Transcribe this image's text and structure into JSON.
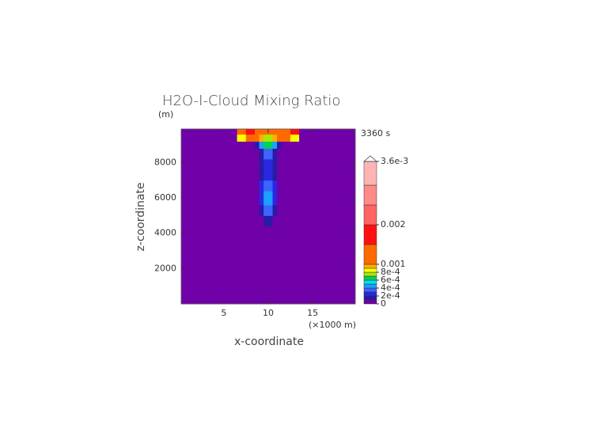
{
  "chart_data": {
    "type": "contour",
    "title": "H2O-I-Cloud Mixing Ratio",
    "y_unit": "(m)",
    "x_unit": "(×1000 m)",
    "time_label": "3360 s",
    "x_label": "x-coordinate",
    "y_label": "z-coordinate",
    "xlim": [
      0.2,
      19.8
    ],
    "ylim": [
      0,
      9900
    ],
    "xticks": [
      5,
      10,
      15
    ],
    "yticks": [
      2000,
      4000,
      6000,
      8000
    ],
    "x_edges": [
      0.2,
      6.5,
      7.5,
      8.5,
      9,
      9.5,
      10,
      10.5,
      11,
      11.5,
      12.5,
      13.5,
      19.8
    ],
    "y_edges": [
      0,
      4400,
      5000,
      5600,
      6400,
      7000,
      7600,
      8200,
      8800,
      9200,
      9600,
      9900
    ],
    "z": [
      [
        0,
        0,
        0,
        0,
        0,
        0,
        0,
        0,
        0,
        0,
        0,
        0
      ],
      [
        0,
        0,
        0,
        0,
        5e-05,
        0.00015,
        0.00015,
        5e-05,
        0,
        0,
        0,
        0
      ],
      [
        0,
        0,
        0,
        0,
        0.00015,
        0.00035,
        0.00035,
        0.00015,
        0,
        0,
        0,
        0
      ],
      [
        0,
        0,
        0,
        5e-05,
        0.00025,
        0.00045,
        0.00045,
        0.00025,
        5e-05,
        0,
        0,
        0
      ],
      [
        0,
        0,
        0,
        5e-05,
        0.00025,
        0.00035,
        0.00035,
        0.00025,
        5e-05,
        0,
        0,
        0
      ],
      [
        0,
        0,
        0,
        5e-05,
        0.00015,
        0.00025,
        0.00025,
        0.00015,
        5e-05,
        0,
        0,
        0
      ],
      [
        0,
        0,
        0,
        5e-05,
        0.00015,
        0.00025,
        0.00025,
        0.00015,
        5e-05,
        0,
        0,
        0
      ],
      [
        0,
        0,
        0,
        0,
        0.00015,
        0.00035,
        0.00035,
        0.00015,
        0,
        0,
        0,
        0
      ],
      [
        0,
        0,
        5e-05,
        0.00015,
        0.00045,
        0.00065,
        0.00065,
        0.00045,
        0.00015,
        5e-05,
        0,
        0
      ],
      [
        0,
        0.00085,
        0.0012,
        0.0012,
        0.00095,
        0.00075,
        0.00075,
        0.00095,
        0.0012,
        0.0012,
        0.00085,
        0
      ],
      [
        0,
        0.0012,
        0.0017,
        0.0012,
        0.0012,
        0.0012,
        0.0012,
        0.0012,
        0.0012,
        0.0012,
        0.0017,
        0
      ]
    ],
    "colorbar": {
      "levels": [
        0,
        0.0001,
        0.0002,
        0.0003,
        0.0004,
        0.0005,
        0.0006,
        0.0007,
        0.0008,
        0.0009,
        0.001,
        0.0015,
        0.002,
        0.0025,
        0.003,
        0.0036
      ],
      "colors": [
        "#7000a8",
        "#2a1aa8",
        "#2828e0",
        "#3c64ff",
        "#1aa0ff",
        "#00e0e8",
        "#00d060",
        "#a8e800",
        "#ffff00",
        "#ffb000",
        "#ff6a00",
        "#ff1010",
        "#ff6464",
        "#ff8a8a",
        "#ffb4b4"
      ],
      "ticks": [
        0,
        {
          "value": 0.0002,
          "label": "2e-4"
        },
        {
          "value": 0.0004,
          "label": "4e-4"
        },
        {
          "value": 0.0006,
          "label": "6e-4"
        },
        {
          "value": 0.0008,
          "label": "8e-4"
        },
        0.001,
        0.002,
        {
          "value": 0.0036,
          "label": "3.6e-3"
        }
      ]
    }
  }
}
